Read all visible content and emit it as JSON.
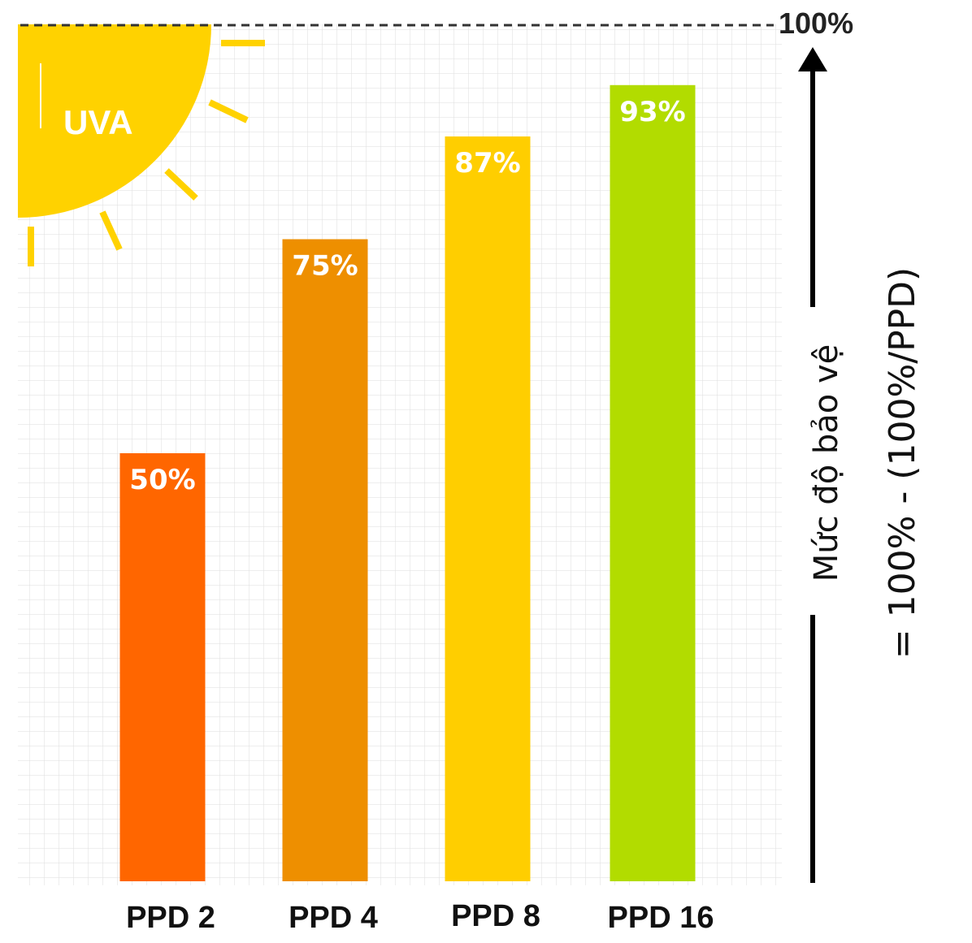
{
  "chart_data": {
    "type": "bar",
    "categories": [
      "PPD 2",
      "PPD 4",
      "PPD 8",
      "PPD 16"
    ],
    "values": [
      50,
      75,
      87,
      93
    ],
    "value_labels": [
      "50%",
      "75%",
      "87%",
      "93%"
    ],
    "bar_colors": [
      "#FF6600",
      "#EE8F00",
      "#FFCE00",
      "#B2DC00"
    ],
    "ylim": [
      0,
      100
    ],
    "reference_line": {
      "value": 100,
      "label": "100%",
      "style": "dashed"
    },
    "grid": true,
    "grid_color": "#DDDDDD",
    "axis_title": "Mức độ bảo vệ",
    "axis_formula": "= 100% - (100%/PPD)",
    "badge": {
      "text": "UVA",
      "icon": "sun-icon",
      "color": "#FFD200"
    }
  }
}
